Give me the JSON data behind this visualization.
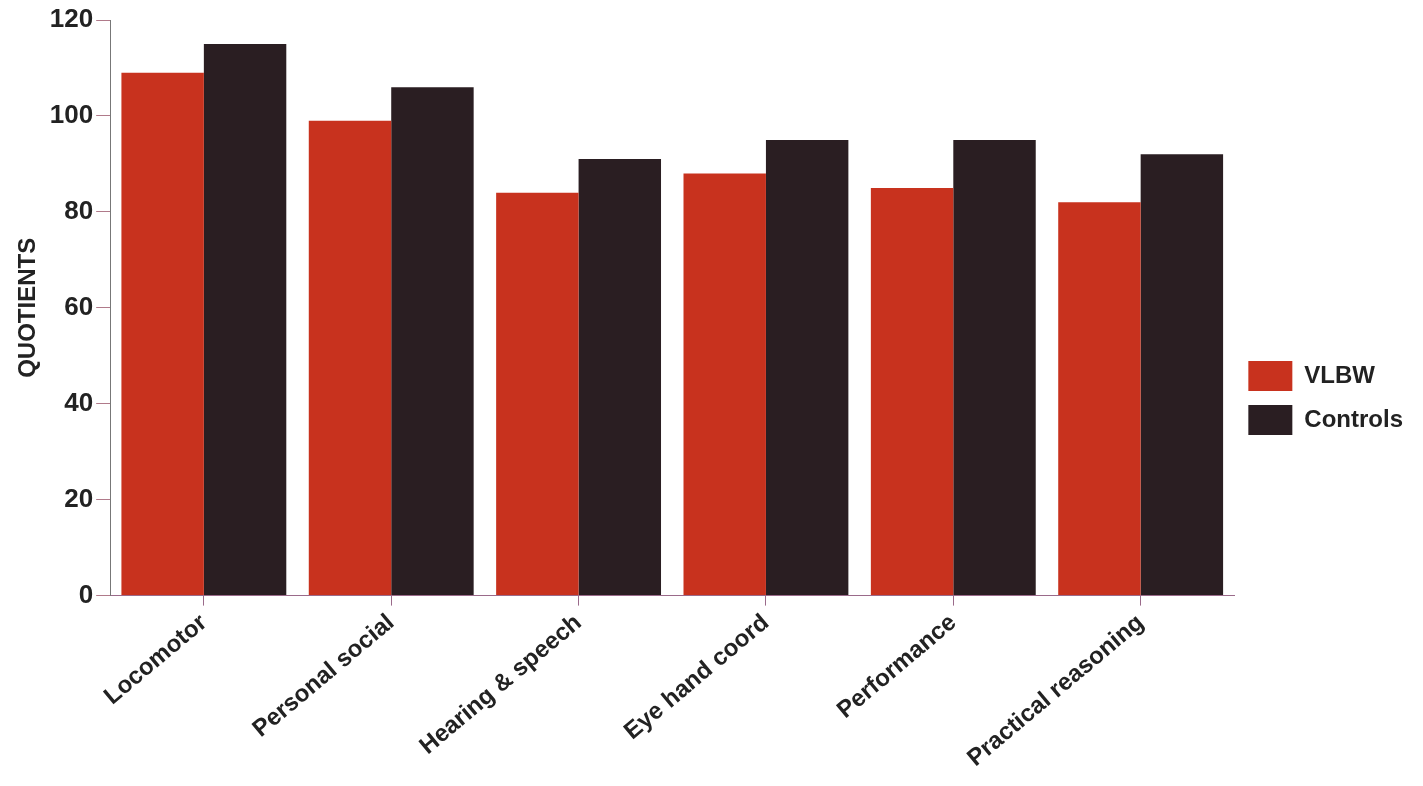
{
  "chart_data": {
    "type": "bar",
    "ylabel": "QUOTIENTS",
    "categories": [
      "Locomotor",
      "Personal social",
      "Hearing & speech",
      "Eye hand coord",
      "Performance",
      "Practical reasoning"
    ],
    "series": [
      {
        "name": "VLBW",
        "color": "#c8321e",
        "values": [
          109,
          99,
          84,
          88,
          85,
          82
        ]
      },
      {
        "name": "Controls",
        "color": "#2a1e22",
        "values": [
          115,
          106,
          91,
          95,
          95,
          92
        ]
      }
    ],
    "ylim": [
      0,
      120
    ],
    "yticks": [
      0,
      20,
      40,
      60,
      80,
      100,
      120
    ],
    "grid": false,
    "legend": "right"
  }
}
